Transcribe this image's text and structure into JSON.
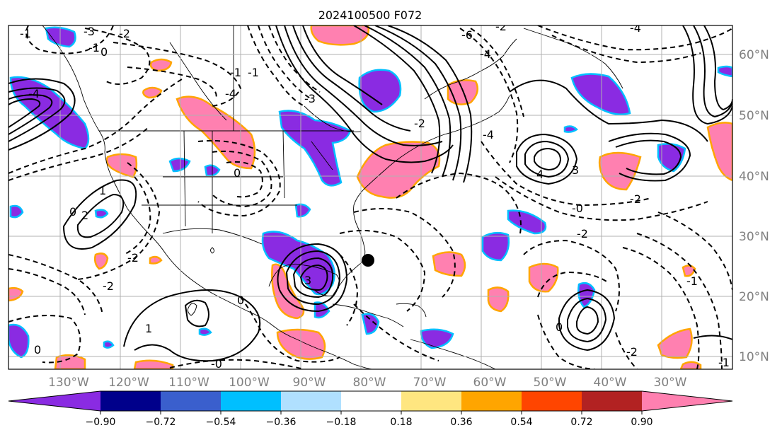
{
  "title": "2024100500 F072",
  "lon_labels": [
    "130°W",
    "120°W",
    "110°W",
    "100°W",
    "90°W",
    "80°W",
    "70°W",
    "60°W",
    "50°W",
    "40°W",
    "30°W"
  ],
  "lat_labels": [
    "60°N",
    "50°N",
    "40°N",
    "30°N",
    "20°N",
    "10°N"
  ],
  "colorbar": {
    "ticks": [
      "−0.90",
      "−0.72",
      "−0.54",
      "−0.36",
      "−0.18",
      "0.18",
      "0.36",
      "0.54",
      "0.72",
      "0.90"
    ],
    "colors": [
      "#8a2be2",
      "#00008b",
      "#3a5fcd",
      "#00bfff",
      "#b0e0ff",
      "#ffffff",
      "#ffe680",
      "#ffa500",
      "#ff4500",
      "#b22222",
      "#ff80b0"
    ]
  },
  "contour_labels": [
    {
      "text": "-1"
    },
    {
      "text": "-3"
    },
    {
      "text": "-2"
    },
    {
      "text": "-1"
    },
    {
      "text": "0"
    },
    {
      "text": "-4"
    },
    {
      "text": "-6"
    },
    {
      "text": "-4"
    },
    {
      "text": "-2"
    },
    {
      "text": "-4"
    },
    {
      "text": "-4"
    },
    {
      "text": "-1"
    },
    {
      "text": "-1"
    },
    {
      "text": "-3"
    },
    {
      "text": "-4"
    },
    {
      "text": "-2"
    },
    {
      "text": "0"
    },
    {
      "text": "2"
    },
    {
      "text": "1"
    },
    {
      "text": "-2"
    },
    {
      "text": "0"
    },
    {
      "text": "-2"
    },
    {
      "text": "1"
    },
    {
      "text": "0"
    },
    {
      "text": "-0"
    },
    {
      "text": "4"
    },
    {
      "text": "3"
    },
    {
      "text": "-0"
    },
    {
      "text": "-2"
    },
    {
      "text": "-2"
    },
    {
      "text": "0"
    },
    {
      "text": "-1"
    },
    {
      "text": "3"
    },
    {
      "text": "0"
    },
    {
      "text": "-2"
    },
    {
      "text": "-1"
    }
  ]
}
